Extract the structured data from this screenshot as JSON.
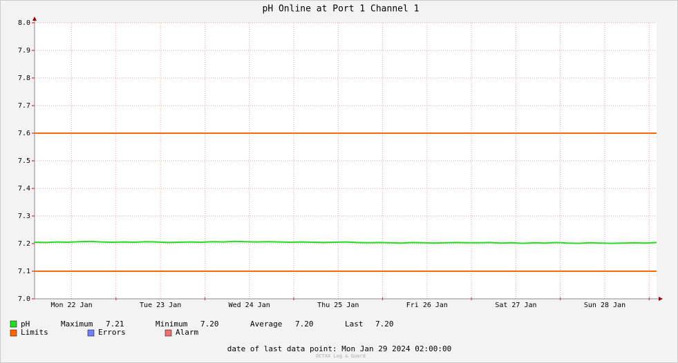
{
  "chart_data": {
    "type": "line",
    "title": "pH Online at Port 1 Channel 1",
    "x_labels": [
      "Mon 22 Jan",
      "Tue 23 Jan",
      "Wed 24 Jan",
      "Thu 25 Jan",
      "Fri 26 Jan",
      "Sat 27 Jan",
      "Sun 28 Jan"
    ],
    "ylim": [
      7,
      8
    ],
    "yticks": [
      {
        "value": 7,
        "label": "7.0"
      },
      7.1,
      7.2,
      7.3,
      7.4,
      7.5,
      7.6,
      7.7,
      7.8,
      7.9,
      {
        "value": 8,
        "label": "8.0"
      }
    ],
    "grid": true,
    "series": [
      {
        "name": "pH",
        "color": "#22dd22",
        "values": [
          7.205,
          7.204,
          7.206,
          7.205,
          7.207,
          7.208,
          7.206,
          7.205,
          7.206,
          7.205,
          7.207,
          7.206,
          7.204,
          7.205,
          7.206,
          7.205,
          7.207,
          7.206,
          7.208,
          7.207,
          7.206,
          7.207,
          7.206,
          7.205,
          7.206,
          7.205,
          7.204,
          7.205,
          7.206,
          7.204,
          7.203,
          7.204,
          7.203,
          7.202,
          7.204,
          7.203,
          7.202,
          7.203,
          7.204,
          7.203,
          7.203,
          7.204,
          7.202,
          7.203,
          7.201,
          7.203,
          7.202,
          7.204,
          7.202,
          7.201,
          7.203,
          7.202,
          7.201,
          7.202,
          7.203,
          7.202,
          7.204
        ]
      }
    ],
    "limits": {
      "name": "Limits",
      "color": "#ff6600",
      "values": [
        7.6,
        7.1
      ]
    },
    "stats": [
      {
        "name": "Maximum",
        "value": "7.21"
      },
      {
        "name": "Minimum",
        "value": "7.20"
      },
      {
        "name": "Average",
        "value": "7.20"
      },
      {
        "name": "Last",
        "value": "7.20"
      }
    ],
    "extra_legend": [
      {
        "name": "Errors",
        "color": "#7080ff"
      },
      {
        "name": "Alarm",
        "color": "#f07070"
      }
    ],
    "footer": "date of last data point:  Mon Jan 29 2024 02:00:00",
    "watermark": "OCTAX Log & Guard"
  }
}
